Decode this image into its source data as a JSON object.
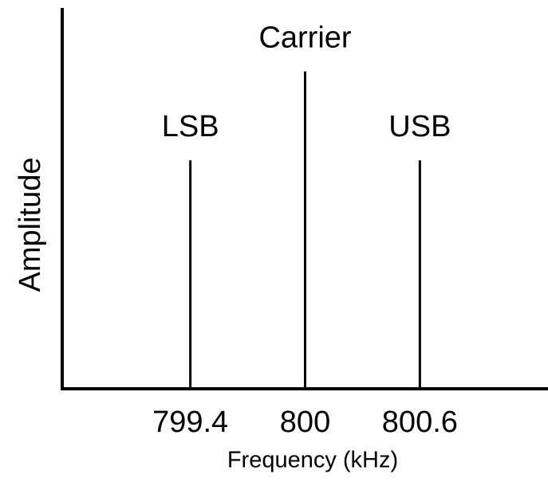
{
  "chart_data": {
    "type": "stem",
    "x_label": "Frequency (kHz)",
    "y_label": "Amplitude",
    "x": [
      799.4,
      800,
      800.6
    ],
    "values": [
      0.72,
      1.0,
      0.72
    ],
    "point_labels": [
      "LSB",
      "Carrier",
      "USB"
    ],
    "color": "#000000",
    "xlim": [
      798.73,
      801.27
    ],
    "ylim": [
      0,
      1.2
    ],
    "xticks": [
      799.4,
      800,
      800.6
    ]
  }
}
